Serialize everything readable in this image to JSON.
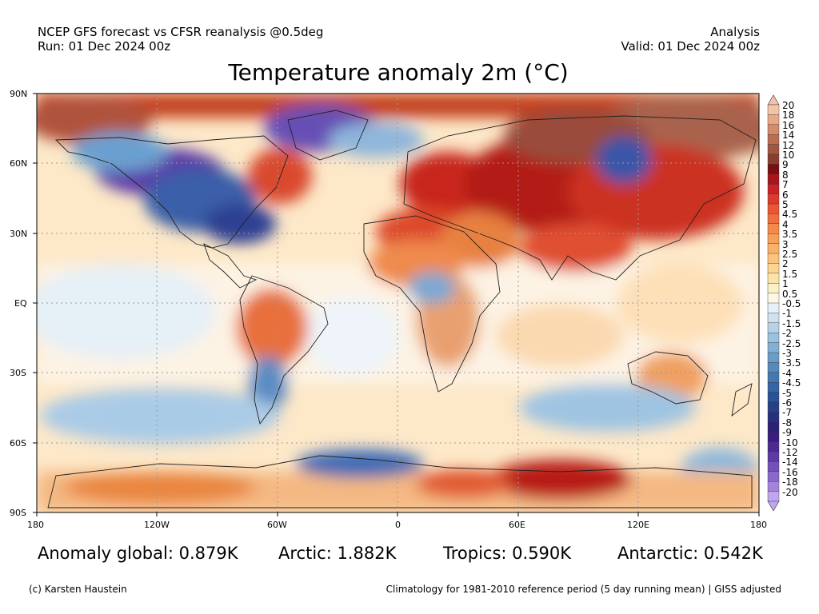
{
  "header": {
    "left_line1": "NCEP GFS forecast vs CFSR reanalysis @0.5deg",
    "left_line2": "Run: 01 Dec 2024 00z",
    "right_line1": "Analysis",
    "right_line2": "Valid: 01 Dec 2024 00z"
  },
  "title": "Temperature anomaly 2m (°C)",
  "axes": {
    "y_labels": [
      "90N",
      "60N",
      "30N",
      "EQ",
      "30S",
      "60S",
      "90S"
    ],
    "x_labels": [
      "180",
      "120W",
      "60W",
      "0",
      "60E",
      "120E",
      "180"
    ]
  },
  "colorbar": {
    "labels": [
      "20",
      "18",
      "16",
      "14",
      "12",
      "10",
      "9",
      "8",
      "7",
      "6",
      "5",
      "4.5",
      "4",
      "3.5",
      "3",
      "2.5",
      "2",
      "1.5",
      "1",
      "0.5",
      "-0.5",
      "-1",
      "-1.5",
      "-2",
      "-2.5",
      "-3",
      "-3.5",
      "-4",
      "-4.5",
      "-5",
      "-6",
      "-7",
      "-8",
      "-9",
      "-10",
      "-12",
      "-14",
      "-16",
      "-18",
      "-20"
    ],
    "colors": [
      "#f3c4a8",
      "#e8a888",
      "#d48b6a",
      "#bb6d52",
      "#a2553f",
      "#8a3e2e",
      "#7a0e12",
      "#a8151a",
      "#c92227",
      "#dd3a2c",
      "#eb5535",
      "#f16f3f",
      "#f5894c",
      "#f89f5a",
      "#f9b26a",
      "#fbc47d",
      "#fcd592",
      "#fde3aa",
      "#fdefc6",
      "#fdf8e6",
      "#e8f1f8",
      "#cfe2f0",
      "#b6d2e8",
      "#9cc1de",
      "#82afd3",
      "#6a9cc8",
      "#568abd",
      "#4478b2",
      "#3565a6",
      "#2b5196",
      "#27408a",
      "#27307e",
      "#2b2274",
      "#3a1d80",
      "#4c2a92",
      "#5e3aa6",
      "#7350ba",
      "#8a68cc",
      "#a384dc",
      "#c0a6ec"
    ]
  },
  "stats": {
    "global": "Anomaly global: 0.879K",
    "arctic": "Arctic: 1.882K",
    "tropics": "Tropics: 0.590K",
    "antarctic": "Antarctic: 0.542K"
  },
  "footer": {
    "credit": "(c) Karsten Haustein",
    "note": "Climatology for 1981-2010 reference period (5 day running mean) | GISS adjusted"
  }
}
